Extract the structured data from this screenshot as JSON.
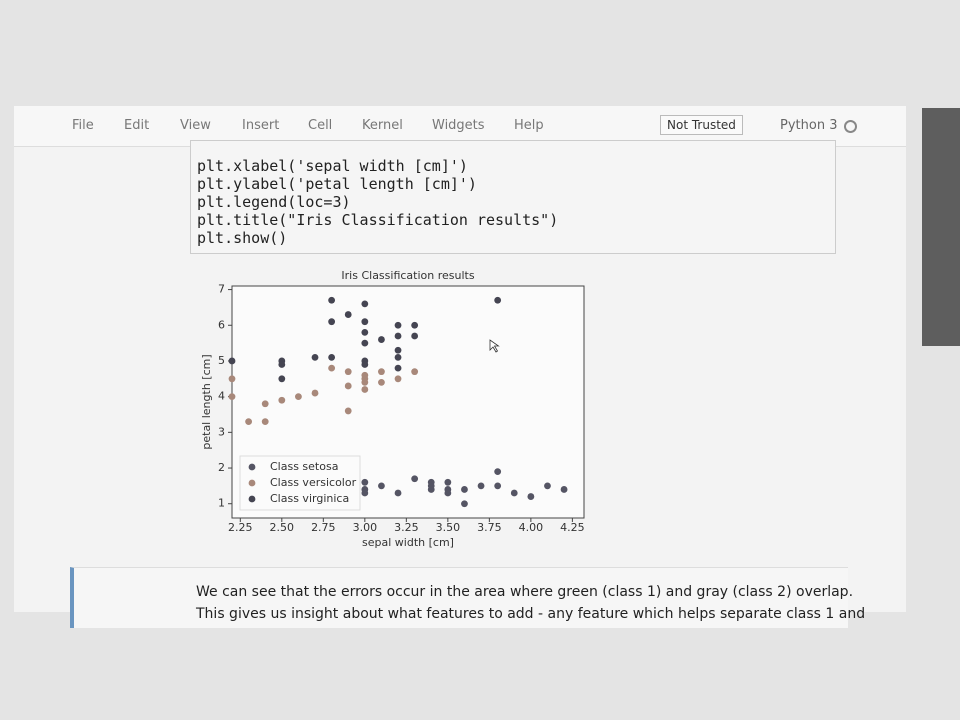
{
  "menu": [
    "File",
    "Edit",
    "View",
    "Insert",
    "Cell",
    "Kernel",
    "Widgets",
    "Help"
  ],
  "status": {
    "trust": "Not Trusted",
    "kernel": "Python 3"
  },
  "code": [
    "plt.xlabel('sepal width [cm]')",
    "plt.ylabel('petal length [cm]')",
    "plt.legend(loc=3)",
    "plt.title(\"Iris Classification results\")",
    "plt.show()"
  ],
  "chart_data": {
    "type": "scatter",
    "title": "Iris Classification results",
    "x_label": "sepal width [cm]",
    "y_label": "petal length [cm]",
    "xlim": [
      2.2,
      4.32
    ],
    "ylim": [
      0.6,
      7.1
    ],
    "xticks": [
      2.25,
      {
        "value": 2.5,
        "label": "2.50"
      },
      2.75,
      {
        "value": 3,
        "label": "3.00"
      },
      3.25,
      {
        "value": 3.5,
        "label": "3.50"
      },
      3.75,
      {
        "value": 4,
        "label": "4.00"
      },
      4.25
    ],
    "yticks": [
      1,
      2,
      3,
      4,
      5,
      6,
      7
    ],
    "legend": "lower left",
    "series": [
      {
        "name": "Class setosa",
        "color": "#555564",
        "x": [
          3.0,
          3.0,
          3.0,
          3.1,
          3.2,
          3.3,
          3.4,
          3.4,
          3.4,
          3.5,
          3.5,
          3.5,
          3.6,
          3.6,
          3.7,
          3.8,
          3.8,
          3.9,
          4.0,
          4.1,
          4.2
        ],
        "values": [
          1.6,
          1.4,
          1.3,
          1.5,
          1.3,
          1.7,
          1.4,
          1.6,
          1.5,
          1.6,
          1.4,
          1.3,
          1.4,
          1.0,
          1.5,
          1.9,
          1.5,
          1.3,
          1.2,
          1.5,
          1.4
        ]
      },
      {
        "name": "Class versicolor",
        "color": "#a8887a",
        "x": [
          2.2,
          2.2,
          2.3,
          2.4,
          2.4,
          2.5,
          2.6,
          2.7,
          2.8,
          2.9,
          2.9,
          2.9,
          3.0,
          3.0,
          3.0,
          3.0,
          3.1,
          3.1,
          3.2,
          3.3
        ],
        "values": [
          4.5,
          4.0,
          3.3,
          3.3,
          3.8,
          3.9,
          4.0,
          4.1,
          4.8,
          4.7,
          4.3,
          3.6,
          4.5,
          4.4,
          4.2,
          4.6,
          4.7,
          4.4,
          4.5,
          4.7
        ]
      },
      {
        "name": "Class virginica",
        "color": "#454552",
        "x": [
          2.2,
          2.5,
          2.5,
          2.5,
          2.7,
          2.8,
          2.8,
          2.8,
          2.9,
          3.0,
          3.0,
          3.0,
          3.0,
          3.0,
          3.0,
          3.1,
          3.2,
          3.2,
          3.2,
          3.2,
          3.2,
          3.3,
          3.3,
          3.8
        ],
        "values": [
          5.0,
          5.0,
          4.9,
          4.5,
          5.1,
          6.7,
          6.1,
          5.1,
          6.3,
          6.6,
          6.1,
          5.8,
          5.5,
          5.0,
          4.9,
          5.6,
          6.0,
          5.7,
          5.3,
          5.1,
          4.8,
          6.0,
          5.7,
          6.7
        ]
      }
    ]
  },
  "markdown": [
    "We can see that the errors occur in the area where green (class 1) and gray (class 2) overlap.",
    "This gives us insight about what features to add - any feature which helps separate class 1 and"
  ]
}
